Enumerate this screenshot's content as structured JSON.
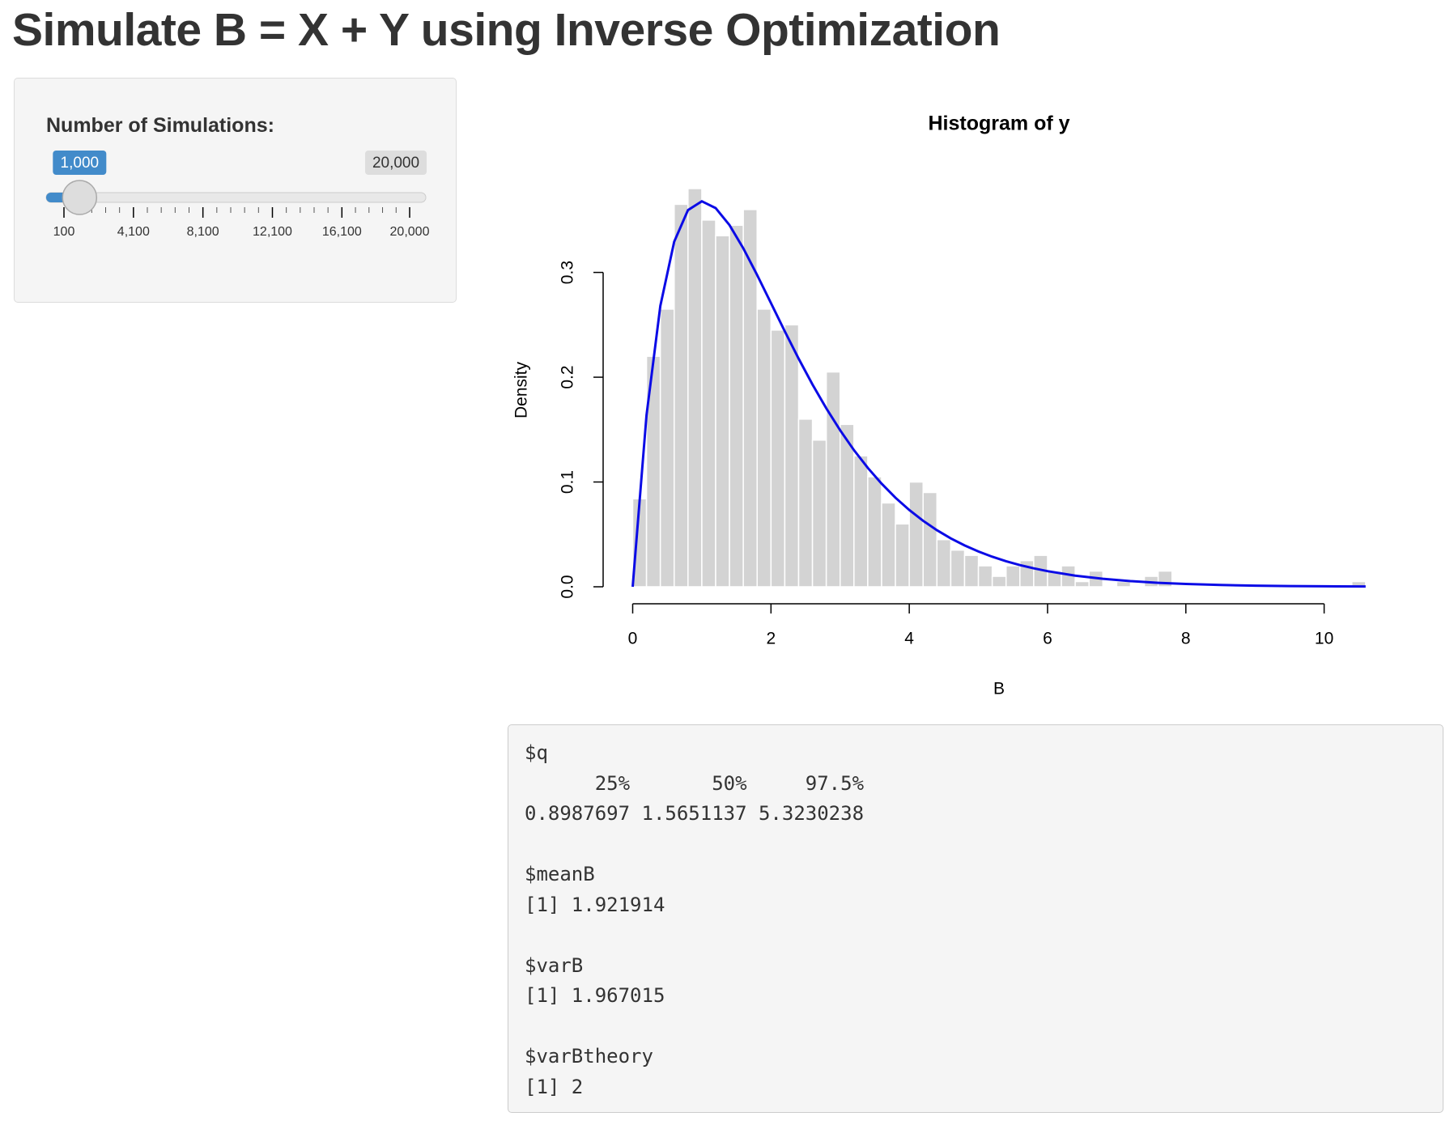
{
  "header": {
    "title": "Simulate B = X + Y using Inverse Optimization"
  },
  "slider": {
    "label": "Number of Simulations:",
    "min": 100,
    "value": {
      "value": 1000,
      "label": "1,000"
    },
    "max": {
      "value": 20000,
      "label": "20,000"
    },
    "ticks": [
      {
        "value": 100,
        "label": "100"
      },
      {
        "value": 4100,
        "label": "4,100"
      },
      {
        "value": 8100,
        "label": "8,100"
      },
      {
        "value": 12100,
        "label": "12,100"
      },
      {
        "value": 16100,
        "label": "16,100"
      },
      {
        "value": 20000,
        "label": "20,000"
      }
    ]
  },
  "chart_data": {
    "type": "histogram",
    "title": "Histogram of y",
    "xlabel": "B",
    "ylabel": "Density",
    "color": "#d3d3d3",
    "bins": [
      0,
      0.2,
      0.4,
      0.6,
      0.8,
      1.0,
      1.2,
      1.4,
      1.6,
      1.8,
      2.0,
      2.2,
      2.4,
      2.6,
      2.8,
      3.0,
      3.2,
      3.4,
      3.6,
      3.8,
      4.0,
      4.2,
      4.4,
      4.6,
      4.8,
      5.0,
      5.2,
      5.4,
      5.6,
      5.8,
      6.0,
      6.2,
      6.4,
      6.6,
      6.8,
      7.0,
      7.2,
      7.4,
      7.6,
      7.8,
      8.0,
      8.2,
      8.4,
      8.6,
      8.8,
      9.0,
      9.2,
      9.4,
      9.6,
      9.8,
      10.0,
      10.2,
      10.4,
      10.6
    ],
    "counts": [
      0.084,
      0.22,
      0.265,
      0.365,
      0.38,
      0.35,
      0.335,
      0.345,
      0.36,
      0.265,
      0.245,
      0.25,
      0.16,
      0.14,
      0.205,
      0.155,
      0.125,
      0.105,
      0.08,
      0.06,
      0.1,
      0.09,
      0.045,
      0.035,
      0.03,
      0.02,
      0.01,
      0.02,
      0.025,
      0.03,
      0.015,
      0.02,
      0.005,
      0.015,
      0,
      0.005,
      0,
      0.01,
      0.015,
      0,
      0,
      0,
      0,
      0,
      0,
      0,
      0,
      0,
      0,
      0,
      0,
      0,
      0.005
    ],
    "line": {
      "color": "#0b0be6",
      "x": [
        0,
        0.2,
        0.4,
        0.6,
        0.8,
        1.0,
        1.2,
        1.4,
        1.6,
        1.8,
        2.0,
        2.2,
        2.4,
        2.6,
        2.8,
        3.0,
        3.2,
        3.4,
        3.6,
        3.8,
        4.0,
        4.2,
        4.4,
        4.6,
        4.8,
        5.0,
        5.2,
        5.4,
        5.6,
        5.8,
        6.0,
        6.4,
        6.8,
        7.2,
        7.6,
        8.0,
        8.5,
        9.0,
        9.5,
        10.0,
        10.6
      ],
      "y": [
        0,
        0.1637,
        0.2681,
        0.3293,
        0.3595,
        0.3679,
        0.3614,
        0.3452,
        0.323,
        0.2975,
        0.2707,
        0.2438,
        0.2177,
        0.1931,
        0.1703,
        0.1494,
        0.1304,
        0.1135,
        0.0984,
        0.085,
        0.0733,
        0.063,
        0.054,
        0.0462,
        0.0395,
        0.0337,
        0.0287,
        0.0244,
        0.0207,
        0.0176,
        0.0149,
        0.0106,
        0.0076,
        0.0054,
        0.0038,
        0.0027,
        0.0017,
        0.0011,
        0.0007,
        0.00045,
        0.00026
      ]
    },
    "xlim": [
      0,
      10.6
    ],
    "ylim": [
      0,
      0.38
    ],
    "xticks": [
      0,
      2,
      4,
      6,
      8,
      10
    ],
    "yticks": [
      {
        "value": 0,
        "label": "0.0"
      },
      0.1,
      0.2,
      0.3
    ]
  },
  "output": {
    "blocks": [
      {
        "name": "$q",
        "lines": [
          "      25%       50%     97.5%",
          "0.8987697 1.5651137 5.3230238"
        ]
      },
      {
        "name": "$meanB",
        "lines": [
          "[1] 1.921914"
        ]
      },
      {
        "name": "$varB",
        "lines": [
          "[1] 1.967015"
        ]
      },
      {
        "name": "$varBtheory",
        "lines": [
          "[1] 2"
        ]
      }
    ]
  }
}
